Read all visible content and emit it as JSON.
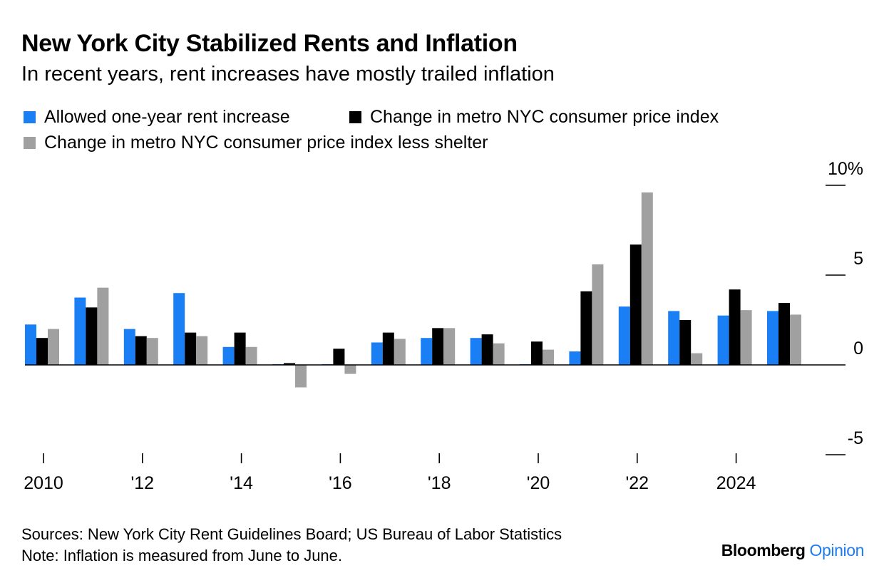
{
  "title": "New York City Stabilized Rents and Inflation",
  "subtitle": "In recent years, rent increases have mostly trailed inflation",
  "sources": "Sources: New York City Rent Guidelines Board; US Bureau of Labor Statistics",
  "note": "Note: Inflation is measured from June to June.",
  "brand": {
    "name": "Bloomberg",
    "suffix": "Opinion"
  },
  "colors": {
    "rent": "#1a7ff5",
    "cpi": "#000000",
    "cpi_less_shelter": "#a0a0a0",
    "brand_accent": "#1f7cf0"
  },
  "chart_data": {
    "type": "bar",
    "title": "New York City Stabilized Rents and Inflation",
    "subtitle": "In recent years, rent increases have mostly trailed inflation",
    "categories": [
      "2010",
      "2011",
      "2012",
      "2013",
      "2014",
      "2015",
      "2016",
      "2017",
      "2018",
      "2019",
      "2020",
      "2021",
      "2022",
      "2023",
      "2024",
      "2025"
    ],
    "series": [
      {
        "name": "Allowed one-year rent increase",
        "color": "#1a7ff5",
        "values": [
          2.25,
          3.75,
          2.0,
          4.0,
          1.0,
          0.0,
          0.0,
          1.25,
          1.5,
          1.5,
          0.0,
          0.75,
          3.25,
          3.0,
          2.75,
          3.0
        ]
      },
      {
        "name": "Change in metro NYC consumer price index",
        "color": "#000000",
        "values": [
          1.5,
          3.2,
          1.6,
          1.8,
          1.8,
          0.1,
          0.9,
          1.8,
          2.05,
          1.7,
          1.3,
          4.1,
          6.7,
          2.5,
          4.2,
          3.45
        ]
      },
      {
        "name": "Change in metro NYC consumer price index less shelter",
        "color": "#a0a0a0",
        "values": [
          2.0,
          4.3,
          1.5,
          1.6,
          1.0,
          -1.25,
          -0.5,
          1.45,
          2.05,
          1.2,
          0.85,
          5.6,
          9.6,
          0.65,
          3.05,
          2.8
        ]
      }
    ],
    "y_axis": {
      "ylim": [
        -5,
        10
      ],
      "ticks": [
        -5,
        0,
        5,
        10
      ],
      "tick_labels": [
        "-5",
        "0",
        "5",
        "10%"
      ],
      "position": "right"
    },
    "x_axis": {
      "ticks": [
        "2010",
        "2012",
        "2014",
        "2016",
        "2018",
        "2020",
        "2022",
        "2024"
      ],
      "tick_labels": [
        "2010",
        "'12",
        "'14",
        "'16",
        "'18",
        "'20",
        "'22",
        "2024"
      ]
    },
    "legend": "top",
    "grid": false
  }
}
